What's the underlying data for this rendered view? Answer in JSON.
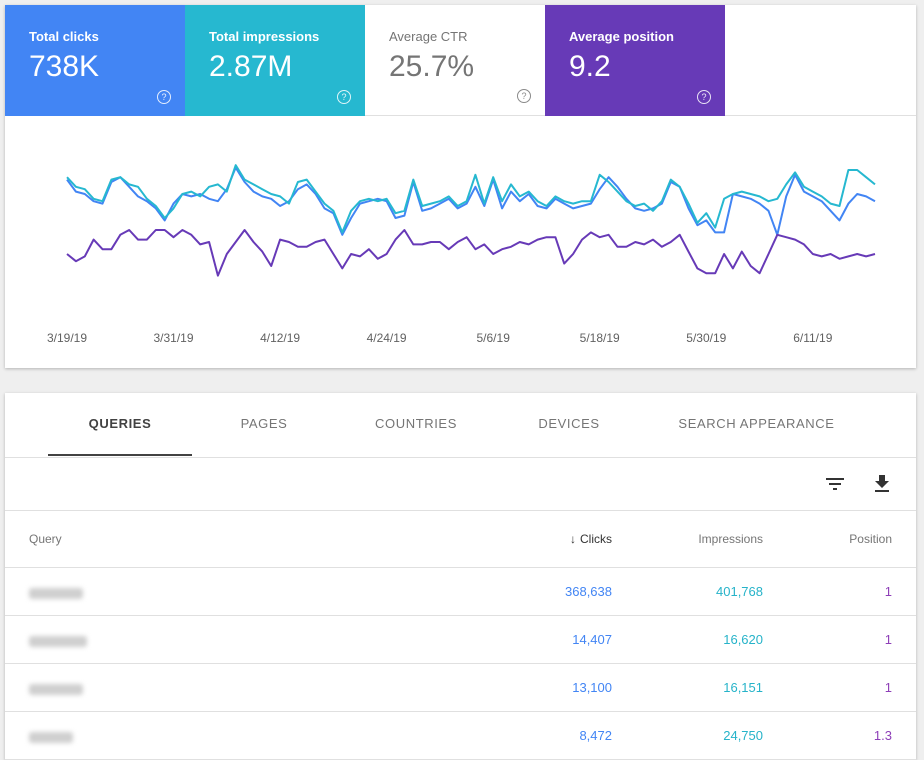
{
  "metrics": [
    {
      "label": "Total clicks",
      "value": "738K",
      "color": "#4285f4",
      "active": true
    },
    {
      "label": "Total impressions",
      "value": "2.87M",
      "color": "#26b8d0",
      "active": true
    },
    {
      "label": "Average CTR",
      "value": "25.7%",
      "color": "#ffffff",
      "active": false
    },
    {
      "label": "Average position",
      "value": "9.2",
      "color": "#673ab7",
      "active": true
    }
  ],
  "help_glyph": "?",
  "chart_data": {
    "type": "line",
    "x_tick_labels": [
      "3/19/19",
      "3/31/19",
      "4/12/19",
      "4/24/19",
      "5/6/19",
      "5/18/19",
      "5/30/19",
      "6/11/19"
    ],
    "x_tick_day_index": [
      0,
      12,
      24,
      36,
      48,
      60,
      72,
      84
    ],
    "n_days": 92,
    "grid": false,
    "legend": "none",
    "series": [
      {
        "color": "#4285f4",
        "values": [
          0.62,
          0.52,
          0.5,
          0.44,
          0.42,
          0.6,
          0.64,
          0.56,
          0.48,
          0.44,
          0.38,
          0.28,
          0.42,
          0.5,
          0.48,
          0.5,
          0.46,
          0.44,
          0.54,
          0.72,
          0.6,
          0.52,
          0.48,
          0.46,
          0.4,
          0.44,
          0.54,
          0.58,
          0.5,
          0.38,
          0.34,
          0.16,
          0.3,
          0.42,
          0.44,
          0.46,
          0.44,
          0.3,
          0.32,
          0.6,
          0.36,
          0.38,
          0.42,
          0.46,
          0.38,
          0.42,
          0.56,
          0.4,
          0.62,
          0.38,
          0.52,
          0.44,
          0.5,
          0.4,
          0.38,
          0.46,
          0.42,
          0.38,
          0.4,
          0.42,
          0.54,
          0.64,
          0.56,
          0.46,
          0.38,
          0.36,
          0.38,
          0.42,
          0.6,
          0.56,
          0.38,
          0.24,
          0.28,
          0.18,
          0.18,
          0.5,
          0.48,
          0.46,
          0.42,
          0.36,
          0.16,
          0.48,
          0.66,
          0.52,
          0.48,
          0.44,
          0.36,
          0.28,
          0.42,
          0.5,
          0.48,
          0.44
        ]
      },
      {
        "color": "#26b8d0",
        "values": [
          0.64,
          0.56,
          0.54,
          0.46,
          0.44,
          0.62,
          0.64,
          0.58,
          0.56,
          0.46,
          0.4,
          0.3,
          0.38,
          0.5,
          0.52,
          0.48,
          0.56,
          0.58,
          0.52,
          0.74,
          0.62,
          0.58,
          0.54,
          0.5,
          0.48,
          0.42,
          0.6,
          0.62,
          0.52,
          0.42,
          0.36,
          0.18,
          0.36,
          0.44,
          0.46,
          0.44,
          0.46,
          0.34,
          0.36,
          0.62,
          0.4,
          0.42,
          0.44,
          0.48,
          0.4,
          0.44,
          0.66,
          0.42,
          0.64,
          0.44,
          0.58,
          0.48,
          0.52,
          0.44,
          0.4,
          0.48,
          0.44,
          0.42,
          0.44,
          0.44,
          0.66,
          0.6,
          0.52,
          0.44,
          0.4,
          0.42,
          0.36,
          0.44,
          0.62,
          0.56,
          0.42,
          0.26,
          0.34,
          0.22,
          0.46,
          0.5,
          0.52,
          0.5,
          0.48,
          0.44,
          0.46,
          0.58,
          0.68,
          0.56,
          0.52,
          0.48,
          0.42,
          0.4,
          0.7,
          0.7,
          0.64,
          0.58
        ]
      },
      {
        "color": "#673ab7",
        "values": [
          0.0,
          -0.06,
          -0.02,
          0.12,
          0.04,
          0.04,
          0.16,
          0.2,
          0.12,
          0.12,
          0.2,
          0.2,
          0.14,
          0.2,
          0.16,
          0.08,
          0.1,
          -0.18,
          0.0,
          0.1,
          0.2,
          0.1,
          0.02,
          -0.1,
          0.12,
          0.1,
          0.06,
          0.06,
          0.1,
          0.12,
          0.0,
          -0.12,
          0.0,
          -0.02,
          0.04,
          -0.04,
          0.0,
          0.12,
          0.2,
          0.08,
          0.08,
          0.1,
          0.1,
          0.04,
          0.1,
          0.14,
          0.04,
          0.08,
          0.0,
          0.04,
          0.06,
          0.1,
          0.08,
          0.12,
          0.14,
          0.14,
          -0.08,
          0.0,
          0.12,
          0.18,
          0.14,
          0.16,
          0.06,
          0.06,
          0.1,
          0.08,
          0.12,
          0.06,
          0.1,
          0.16,
          0.02,
          -0.12,
          -0.16,
          -0.16,
          0.0,
          -0.12,
          0.02,
          -0.1,
          -0.16,
          0.0,
          0.16,
          0.14,
          0.12,
          0.08,
          0.0,
          -0.02,
          0.0,
          -0.04,
          -0.02,
          0.0,
          -0.02,
          0.0
        ]
      }
    ]
  },
  "tabs": [
    "QUERIES",
    "PAGES",
    "COUNTRIES",
    "DEVICES",
    "SEARCH APPEARANCE"
  ],
  "table": {
    "headers": {
      "query": "Query",
      "clicks": "Clicks",
      "impressions": "Impressions",
      "position": "Position",
      "sort_arrow": "↓"
    },
    "rows": [
      {
        "query": "",
        "clicks": "368,638",
        "impressions": "401,768",
        "position": "1"
      },
      {
        "query": "",
        "clicks": "14,407",
        "impressions": "16,620",
        "position": "1"
      },
      {
        "query": "",
        "clicks": "13,100",
        "impressions": "16,151",
        "position": "1"
      },
      {
        "query": "",
        "clicks": "8,472",
        "impressions": "24,750",
        "position": "1.3"
      }
    ]
  }
}
